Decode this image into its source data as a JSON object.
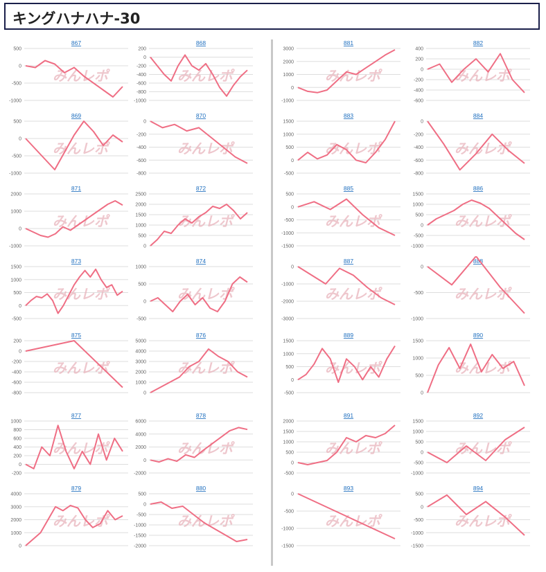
{
  "page_title": "キングハナハナ-30",
  "watermark": "みんレポ",
  "colors": {
    "line": "#ef6e84",
    "grid": "#dddddd",
    "link": "#1f6fbf",
    "axis_text": "#666666",
    "watermark": "#e9b5bd"
  },
  "chart_data": [
    {
      "id": "867",
      "type": "line",
      "ticks": [
        500,
        0,
        -500,
        -1000
      ],
      "ylim": [
        -1000,
        500
      ],
      "values": [
        0,
        -50,
        150,
        50,
        -200,
        -50,
        -300,
        -500,
        -700,
        -900,
        -600
      ]
    },
    {
      "id": "868",
      "type": "line",
      "ticks": [
        200,
        0,
        -200,
        -400,
        -600,
        -800,
        -1000
      ],
      "ylim": [
        -1000,
        200
      ],
      "values": [
        0,
        -200,
        -400,
        -550,
        -200,
        50,
        -200,
        -300,
        -150,
        -400,
        -700,
        -900,
        -650,
        -450,
        -300
      ]
    },
    {
      "id": "869",
      "type": "line",
      "ticks": [
        500,
        0,
        -500,
        -1000
      ],
      "ylim": [
        -1000,
        500
      ],
      "values": [
        0,
        -300,
        -600,
        -900,
        -400,
        100,
        500,
        200,
        -200,
        100,
        -100
      ]
    },
    {
      "id": "870",
      "type": "line",
      "ticks": [
        0,
        -200,
        -400,
        -600,
        -800
      ],
      "ylim": [
        -800,
        0
      ],
      "values": [
        0,
        -100,
        -50,
        -150,
        -100,
        -250,
        -400,
        -550,
        -650
      ]
    },
    {
      "id": "871",
      "type": "line",
      "ticks": [
        2000,
        1000,
        0,
        -1000
      ],
      "ylim": [
        -1000,
        2000
      ],
      "values": [
        0,
        -200,
        -400,
        -500,
        -300,
        100,
        -100,
        200,
        500,
        800,
        1100,
        1400,
        1600,
        1350
      ]
    },
    {
      "id": "872",
      "type": "line",
      "ticks": [
        2500,
        2000,
        1500,
        1000,
        500,
        0
      ],
      "ylim": [
        0,
        2500
      ],
      "values": [
        0,
        300,
        700,
        600,
        1000,
        1300,
        1100,
        1400,
        1600,
        1900,
        1800,
        2000,
        1700,
        1300,
        1600
      ]
    },
    {
      "id": "873",
      "type": "line",
      "ticks": [
        1500,
        1000,
        500,
        0,
        -500
      ],
      "ylim": [
        -500,
        1500
      ],
      "values": [
        0,
        200,
        350,
        300,
        450,
        200,
        -300,
        0,
        400,
        800,
        1100,
        1350,
        1100,
        1400,
        1000,
        700,
        800,
        400,
        550
      ]
    },
    {
      "id": "874",
      "type": "line",
      "ticks": [
        1000,
        500,
        0,
        -500
      ],
      "ylim": [
        -500,
        1000
      ],
      "values": [
        0,
        100,
        -100,
        -300,
        0,
        200,
        -100,
        100,
        -200,
        -300,
        0,
        500,
        700,
        550
      ]
    },
    {
      "id": "875",
      "type": "line",
      "ticks": [
        200,
        0,
        -200,
        -400,
        -600,
        -800
      ],
      "ylim": [
        -800,
        200
      ],
      "values": [
        0,
        200,
        -700
      ]
    },
    {
      "id": "876",
      "type": "line",
      "ticks": [
        5000,
        4000,
        3000,
        2000,
        1000,
        0
      ],
      "ylim": [
        0,
        5000
      ],
      "values": [
        0,
        500,
        1000,
        1500,
        2500,
        3000,
        4200,
        3500,
        3000,
        2000,
        1500
      ]
    },
    {
      "id": "877",
      "type": "line",
      "ticks": [
        1000,
        800,
        600,
        400,
        200,
        0,
        -200
      ],
      "ylim": [
        -200,
        1000
      ],
      "values": [
        0,
        -100,
        400,
        200,
        900,
        300,
        -100,
        300,
        0,
        700,
        100,
        600,
        300
      ]
    },
    {
      "id": "878",
      "type": "line",
      "ticks": [
        6000,
        4000,
        2000,
        0,
        -2000
      ],
      "ylim": [
        -2000,
        6000
      ],
      "values": [
        0,
        -300,
        200,
        -200,
        800,
        400,
        1500,
        2500,
        3500,
        4500,
        5000,
        4700
      ]
    },
    {
      "id": "879",
      "type": "line",
      "ticks": [
        4000,
        3000,
        2000,
        1000,
        0
      ],
      "ylim": [
        0,
        4000
      ],
      "values": [
        0,
        500,
        1000,
        2000,
        3000,
        2700,
        3100,
        2900,
        2000,
        1400,
        1700,
        2700,
        2000,
        2300
      ]
    },
    {
      "id": "880",
      "type": "line",
      "ticks": [
        500,
        0,
        -500,
        -1000,
        -1500,
        -2000
      ],
      "ylim": [
        -2000,
        500
      ],
      "values": [
        0,
        100,
        -200,
        -100,
        -500,
        -900,
        -1200,
        -1500,
        -1800,
        -1700
      ]
    },
    {
      "id": "881",
      "type": "line",
      "ticks": [
        3000,
        2000,
        1000,
        0,
        -1000
      ],
      "ylim": [
        -1000,
        3000
      ],
      "values": [
        0,
        -300,
        -400,
        -200,
        500,
        1200,
        1000,
        1500,
        2000,
        2500,
        2900
      ]
    },
    {
      "id": "882",
      "type": "line",
      "ticks": [
        400,
        200,
        0,
        -200,
        -400,
        -600
      ],
      "ylim": [
        -600,
        400
      ],
      "values": [
        0,
        100,
        -250,
        0,
        200,
        -50,
        300,
        -200,
        -450
      ]
    },
    {
      "id": "883",
      "type": "line",
      "ticks": [
        1500,
        1000,
        500,
        0,
        -500
      ],
      "ylim": [
        -500,
        1500
      ],
      "values": [
        0,
        300,
        50,
        200,
        600,
        400,
        0,
        -100,
        300,
        800,
        1500
      ]
    },
    {
      "id": "884",
      "type": "line",
      "ticks": [
        0,
        -200,
        -400,
        -600,
        -800
      ],
      "ylim": [
        -800,
        0
      ],
      "values": [
        0,
        -350,
        -750,
        -500,
        -200,
        -450,
        -650
      ]
    },
    {
      "id": "885",
      "type": "line",
      "ticks": [
        500,
        0,
        -500,
        -1000,
        -1500
      ],
      "ylim": [
        -1500,
        500
      ],
      "values": [
        0,
        200,
        -100,
        300,
        -300,
        -800,
        -1100
      ]
    },
    {
      "id": "886",
      "type": "line",
      "ticks": [
        1500,
        1000,
        500,
        0,
        -500,
        -1000
      ],
      "ylim": [
        -1000,
        1500
      ],
      "values": [
        0,
        300,
        500,
        700,
        1000,
        1200,
        1050,
        800,
        400,
        0,
        -400,
        -700
      ]
    },
    {
      "id": "887",
      "type": "line",
      "ticks": [
        0,
        -1000,
        -2000,
        -3000
      ],
      "ylim": [
        -3000,
        0
      ],
      "values": [
        0,
        -500,
        -1000,
        -100,
        -500,
        -1200,
        -1800,
        -2200
      ]
    },
    {
      "id": "888",
      "type": "line",
      "ticks": [
        0,
        -500,
        -1000
      ],
      "ylim": [
        -1000,
        0
      ],
      "values": [
        0,
        -350,
        200,
        -400,
        -900
      ]
    },
    {
      "id": "889",
      "type": "line",
      "ticks": [
        1500,
        1000,
        500,
        0,
        -500
      ],
      "ylim": [
        -500,
        1500
      ],
      "values": [
        0,
        200,
        600,
        1200,
        800,
        -100,
        800,
        500,
        0,
        500,
        100,
        800,
        1300
      ]
    },
    {
      "id": "890",
      "type": "line",
      "ticks": [
        1500,
        1000,
        500,
        0
      ],
      "ylim": [
        0,
        1500
      ],
      "values": [
        0,
        800,
        1300,
        700,
        1400,
        600,
        1100,
        700,
        900,
        200
      ]
    },
    {
      "id": "891",
      "type": "line",
      "ticks": [
        2000,
        1500,
        1000,
        500,
        0,
        -500
      ],
      "ylim": [
        -500,
        2000
      ],
      "values": [
        0,
        -100,
        0,
        100,
        500,
        1200,
        1000,
        1300,
        1200,
        1400,
        1800
      ]
    },
    {
      "id": "892",
      "type": "line",
      "ticks": [
        1500,
        1000,
        500,
        0,
        -500,
        -1000
      ],
      "ylim": [
        -1000,
        1500
      ],
      "values": [
        0,
        -500,
        300,
        -400,
        600,
        1200
      ]
    },
    {
      "id": "893",
      "type": "line",
      "ticks": [
        0,
        -500,
        -1000,
        -1500
      ],
      "ylim": [
        -1500,
        0
      ],
      "values": [
        0,
        -1300
      ]
    },
    {
      "id": "894",
      "type": "line",
      "ticks": [
        500,
        0,
        -500,
        -1000,
        -1500
      ],
      "ylim": [
        -1500,
        500
      ],
      "values": [
        0,
        450,
        -300,
        200,
        -400,
        -1100
      ]
    }
  ]
}
